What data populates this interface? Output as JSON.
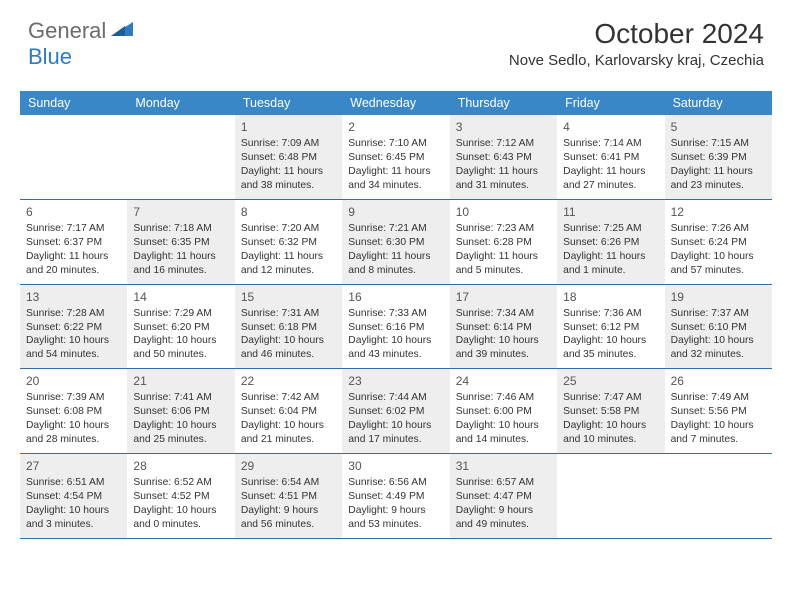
{
  "logo": {
    "text1": "General",
    "text2": "Blue",
    "color_gray": "#6b6b6b",
    "color_blue": "#2f7ac0"
  },
  "header": {
    "month_title": "October 2024",
    "location": "Nove Sedlo, Karlovarsky kraj, Czechia"
  },
  "style": {
    "header_bg": "#3a87c8",
    "header_fg": "#ffffff",
    "shaded_bg": "#eeeeee",
    "border_color": "#2f6ea8",
    "text_color": "#333333",
    "page_bg": "#ffffff"
  },
  "day_names": [
    "Sunday",
    "Monday",
    "Tuesday",
    "Wednesday",
    "Thursday",
    "Friday",
    "Saturday"
  ],
  "weeks": [
    [
      {
        "empty": true
      },
      {
        "empty": true
      },
      {
        "num": "1",
        "shaded": true,
        "sunrise": "Sunrise: 7:09 AM",
        "sunset": "Sunset: 6:48 PM",
        "daylight": "Daylight: 11 hours and 38 minutes."
      },
      {
        "num": "2",
        "sunrise": "Sunrise: 7:10 AM",
        "sunset": "Sunset: 6:45 PM",
        "daylight": "Daylight: 11 hours and 34 minutes."
      },
      {
        "num": "3",
        "shaded": true,
        "sunrise": "Sunrise: 7:12 AM",
        "sunset": "Sunset: 6:43 PM",
        "daylight": "Daylight: 11 hours and 31 minutes."
      },
      {
        "num": "4",
        "sunrise": "Sunrise: 7:14 AM",
        "sunset": "Sunset: 6:41 PM",
        "daylight": "Daylight: 11 hours and 27 minutes."
      },
      {
        "num": "5",
        "shaded": true,
        "sunrise": "Sunrise: 7:15 AM",
        "sunset": "Sunset: 6:39 PM",
        "daylight": "Daylight: 11 hours and 23 minutes."
      }
    ],
    [
      {
        "num": "6",
        "sunrise": "Sunrise: 7:17 AM",
        "sunset": "Sunset: 6:37 PM",
        "daylight": "Daylight: 11 hours and 20 minutes."
      },
      {
        "num": "7",
        "shaded": true,
        "sunrise": "Sunrise: 7:18 AM",
        "sunset": "Sunset: 6:35 PM",
        "daylight": "Daylight: 11 hours and 16 minutes."
      },
      {
        "num": "8",
        "sunrise": "Sunrise: 7:20 AM",
        "sunset": "Sunset: 6:32 PM",
        "daylight": "Daylight: 11 hours and 12 minutes."
      },
      {
        "num": "9",
        "shaded": true,
        "sunrise": "Sunrise: 7:21 AM",
        "sunset": "Sunset: 6:30 PM",
        "daylight": "Daylight: 11 hours and 8 minutes."
      },
      {
        "num": "10",
        "sunrise": "Sunrise: 7:23 AM",
        "sunset": "Sunset: 6:28 PM",
        "daylight": "Daylight: 11 hours and 5 minutes."
      },
      {
        "num": "11",
        "shaded": true,
        "sunrise": "Sunrise: 7:25 AM",
        "sunset": "Sunset: 6:26 PM",
        "daylight": "Daylight: 11 hours and 1 minute."
      },
      {
        "num": "12",
        "sunrise": "Sunrise: 7:26 AM",
        "sunset": "Sunset: 6:24 PM",
        "daylight": "Daylight: 10 hours and 57 minutes."
      }
    ],
    [
      {
        "num": "13",
        "shaded": true,
        "sunrise": "Sunrise: 7:28 AM",
        "sunset": "Sunset: 6:22 PM",
        "daylight": "Daylight: 10 hours and 54 minutes."
      },
      {
        "num": "14",
        "sunrise": "Sunrise: 7:29 AM",
        "sunset": "Sunset: 6:20 PM",
        "daylight": "Daylight: 10 hours and 50 minutes."
      },
      {
        "num": "15",
        "shaded": true,
        "sunrise": "Sunrise: 7:31 AM",
        "sunset": "Sunset: 6:18 PM",
        "daylight": "Daylight: 10 hours and 46 minutes."
      },
      {
        "num": "16",
        "sunrise": "Sunrise: 7:33 AM",
        "sunset": "Sunset: 6:16 PM",
        "daylight": "Daylight: 10 hours and 43 minutes."
      },
      {
        "num": "17",
        "shaded": true,
        "sunrise": "Sunrise: 7:34 AM",
        "sunset": "Sunset: 6:14 PM",
        "daylight": "Daylight: 10 hours and 39 minutes."
      },
      {
        "num": "18",
        "sunrise": "Sunrise: 7:36 AM",
        "sunset": "Sunset: 6:12 PM",
        "daylight": "Daylight: 10 hours and 35 minutes."
      },
      {
        "num": "19",
        "shaded": true,
        "sunrise": "Sunrise: 7:37 AM",
        "sunset": "Sunset: 6:10 PM",
        "daylight": "Daylight: 10 hours and 32 minutes."
      }
    ],
    [
      {
        "num": "20",
        "sunrise": "Sunrise: 7:39 AM",
        "sunset": "Sunset: 6:08 PM",
        "daylight": "Daylight: 10 hours and 28 minutes."
      },
      {
        "num": "21",
        "shaded": true,
        "sunrise": "Sunrise: 7:41 AM",
        "sunset": "Sunset: 6:06 PM",
        "daylight": "Daylight: 10 hours and 25 minutes."
      },
      {
        "num": "22",
        "sunrise": "Sunrise: 7:42 AM",
        "sunset": "Sunset: 6:04 PM",
        "daylight": "Daylight: 10 hours and 21 minutes."
      },
      {
        "num": "23",
        "shaded": true,
        "sunrise": "Sunrise: 7:44 AM",
        "sunset": "Sunset: 6:02 PM",
        "daylight": "Daylight: 10 hours and 17 minutes."
      },
      {
        "num": "24",
        "sunrise": "Sunrise: 7:46 AM",
        "sunset": "Sunset: 6:00 PM",
        "daylight": "Daylight: 10 hours and 14 minutes."
      },
      {
        "num": "25",
        "shaded": true,
        "sunrise": "Sunrise: 7:47 AM",
        "sunset": "Sunset: 5:58 PM",
        "daylight": "Daylight: 10 hours and 10 minutes."
      },
      {
        "num": "26",
        "sunrise": "Sunrise: 7:49 AM",
        "sunset": "Sunset: 5:56 PM",
        "daylight": "Daylight: 10 hours and 7 minutes."
      }
    ],
    [
      {
        "num": "27",
        "shaded": true,
        "sunrise": "Sunrise: 6:51 AM",
        "sunset": "Sunset: 4:54 PM",
        "daylight": "Daylight: 10 hours and 3 minutes."
      },
      {
        "num": "28",
        "sunrise": "Sunrise: 6:52 AM",
        "sunset": "Sunset: 4:52 PM",
        "daylight": "Daylight: 10 hours and 0 minutes."
      },
      {
        "num": "29",
        "shaded": true,
        "sunrise": "Sunrise: 6:54 AM",
        "sunset": "Sunset: 4:51 PM",
        "daylight": "Daylight: 9 hours and 56 minutes."
      },
      {
        "num": "30",
        "sunrise": "Sunrise: 6:56 AM",
        "sunset": "Sunset: 4:49 PM",
        "daylight": "Daylight: 9 hours and 53 minutes."
      },
      {
        "num": "31",
        "shaded": true,
        "sunrise": "Sunrise: 6:57 AM",
        "sunset": "Sunset: 4:47 PM",
        "daylight": "Daylight: 9 hours and 49 minutes."
      },
      {
        "empty": true
      },
      {
        "empty": true
      }
    ]
  ]
}
